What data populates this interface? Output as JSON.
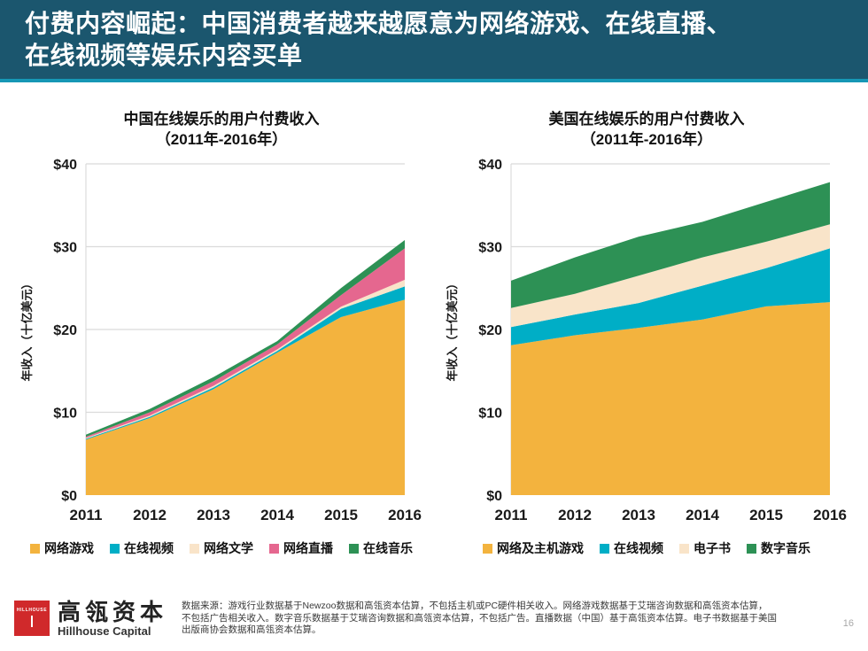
{
  "slide": {
    "title": "付费内容崛起：中国消费者越来越愿意为网络游戏、在线直播、\n在线视频等娱乐内容买单",
    "page_number": "16",
    "source_note": "数据来源：游戏行业数据基于Newzoo数据和高瓴资本估算，不包括主机或PC硬件相关收入。网络游戏数据基于艾瑞咨询数据和高瓴资本估算，不包括广告相关收入。数字音乐数据基于艾瑞咨询数据和高瓴资本估算，不包括广告。直播数据（中国）基于高瓴资本估算。电子书数据基于美国出版商协会数据和高瓴资本估算。",
    "logo": {
      "square_text": "HILLHOUSE",
      "name_cn": "高瓴资本",
      "name_en": "Hillhouse Capital"
    },
    "colors": {
      "header_bg": "#1B566E",
      "header_stripe": "#1697B5",
      "logo_red": "#D0292B",
      "series_gold": "#F3B33E",
      "series_cyan": "#00AEC6",
      "series_cream": "#F9E4C9",
      "series_pink": "#E5678F",
      "series_green": "#2D9155"
    }
  },
  "chart_data": [
    {
      "type": "area",
      "stacked": true,
      "title": "中国在线娱乐的用户付费收入",
      "subtitle": "（2011年-2016年）",
      "xlabel": "",
      "ylabel": "年收入（十亿美元）",
      "x": [
        "2011",
        "2012",
        "2013",
        "2014",
        "2015",
        "2016"
      ],
      "ylim": [
        0,
        40
      ],
      "yticks": [
        0,
        10,
        20,
        30,
        40
      ],
      "ytick_labels": [
        "$0",
        "$10",
        "$20",
        "$30",
        "$40"
      ],
      "grid": true,
      "legend_position": "bottom",
      "series": [
        {
          "name": "网络游戏",
          "color": "#F3B33E",
          "values": [
            6.7,
            9.3,
            12.8,
            17.2,
            21.5,
            23.6
          ]
        },
        {
          "name": "在线视频",
          "color": "#00AEC6",
          "values": [
            0.1,
            0.15,
            0.2,
            0.2,
            1.0,
            1.6
          ]
        },
        {
          "name": "网络文学",
          "color": "#F9E4C9",
          "values": [
            0.1,
            0.15,
            0.2,
            0.2,
            0.25,
            0.8
          ]
        },
        {
          "name": "网络直播",
          "color": "#E5678F",
          "values": [
            0.15,
            0.4,
            0.55,
            0.6,
            1.4,
            3.8
          ]
        },
        {
          "name": "在线音乐",
          "color": "#2D9155",
          "values": [
            0.25,
            0.4,
            0.5,
            0.4,
            0.85,
            1.0
          ]
        }
      ]
    },
    {
      "type": "area",
      "stacked": true,
      "title": "美国在线娱乐的用户付费收入",
      "subtitle": "（2011年-2016年）",
      "xlabel": "",
      "ylabel": "年收入（十亿美元）",
      "x": [
        "2011",
        "2012",
        "2013",
        "2014",
        "2015",
        "2016"
      ],
      "ylim": [
        0,
        40
      ],
      "yticks": [
        0,
        10,
        20,
        30,
        40
      ],
      "ytick_labels": [
        "$0",
        "$10",
        "$20",
        "$30",
        "$40"
      ],
      "grid": true,
      "legend_position": "bottom",
      "series": [
        {
          "name": "网络及主机游戏",
          "color": "#F3B33E",
          "values": [
            18.1,
            19.3,
            20.2,
            21.2,
            22.8,
            23.3
          ]
        },
        {
          "name": "在线视频",
          "color": "#00AEC6",
          "values": [
            2.2,
            2.5,
            3.0,
            4.1,
            4.6,
            6.5
          ]
        },
        {
          "name": "电子书",
          "color": "#F9E4C9",
          "values": [
            2.3,
            2.5,
            3.3,
            3.4,
            3.2,
            2.9
          ]
        },
        {
          "name": "数字音乐",
          "color": "#2D9155",
          "values": [
            3.3,
            4.4,
            4.7,
            4.3,
            4.8,
            5.1
          ]
        }
      ]
    }
  ]
}
